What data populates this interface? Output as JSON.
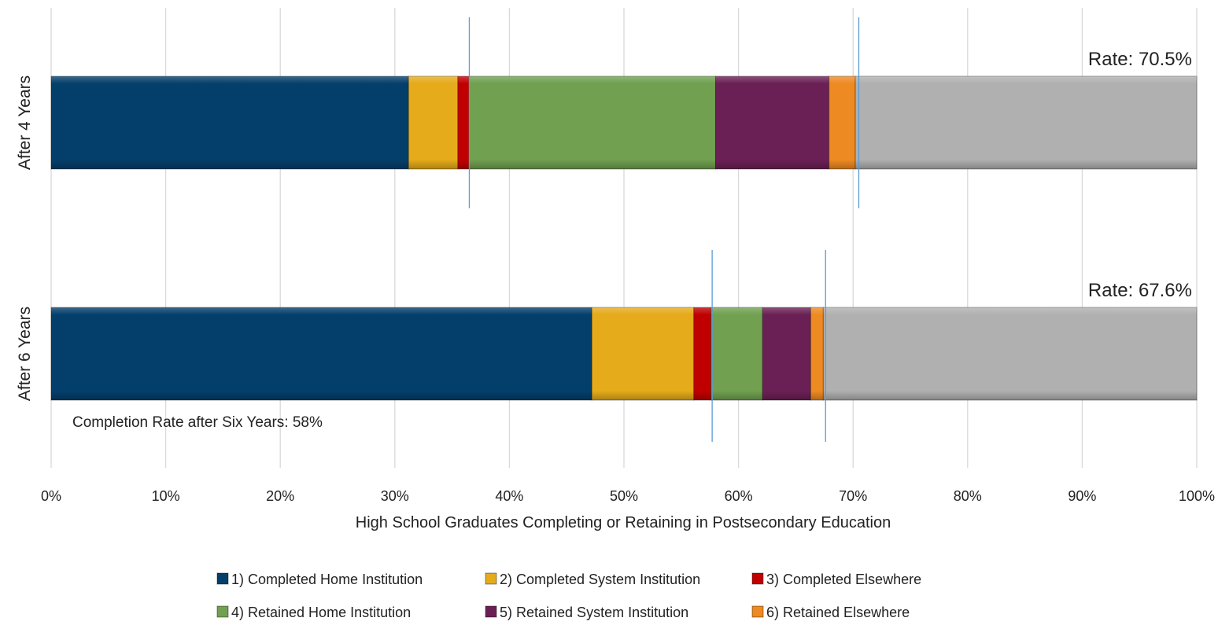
{
  "chart_data": {
    "type": "bar",
    "orientation": "horizontal",
    "stacked": true,
    "categories": [
      "After 4 Years",
      "After 6 Years"
    ],
    "series": [
      {
        "name": "1) Completed Home Institution",
        "color": "#043F6B",
        "values": [
          31.2,
          47.2
        ]
      },
      {
        "name": "2) Completed System Institution",
        "color": "#E5AB1A",
        "values": [
          4.3,
          8.9
        ]
      },
      {
        "name": "3) Completed Elsewhere",
        "color": "#C00000",
        "values": [
          1.0,
          1.5
        ]
      },
      {
        "name": "4) Retained Home Institution",
        "color": "#70A050",
        "values": [
          21.5,
          4.5
        ]
      },
      {
        "name": "5) Retained System Institution",
        "color": "#6B2055",
        "values": [
          9.9,
          4.2
        ]
      },
      {
        "name": "6) Retained Elsewhere",
        "color": "#EE8A22",
        "values": [
          2.3,
          1.1
        ]
      },
      {
        "name": "",
        "color": "#B0B0B0",
        "values": [
          29.8,
          32.6
        ]
      }
    ],
    "rate_labels": [
      "Rate: 70.5%",
      "Rate: 67.6%"
    ],
    "marker_lines": [
      [
        36.5,
        70.5
      ],
      [
        57.7,
        67.6
      ]
    ],
    "annotation": "Completion Rate after Six Years: 58%",
    "xlabel": "High School Graduates Completing or Retaining in Postsecondary Education",
    "xlim": [
      0,
      100
    ],
    "x_ticks": [
      0,
      10,
      20,
      30,
      40,
      50,
      60,
      70,
      80,
      90,
      100
    ],
    "x_tick_labels": [
      "0%",
      "10%",
      "20%",
      "30%",
      "40%",
      "50%",
      "60%",
      "70%",
      "80%",
      "90%",
      "100%"
    ],
    "grid": true,
    "legend_position": "bottom"
  }
}
